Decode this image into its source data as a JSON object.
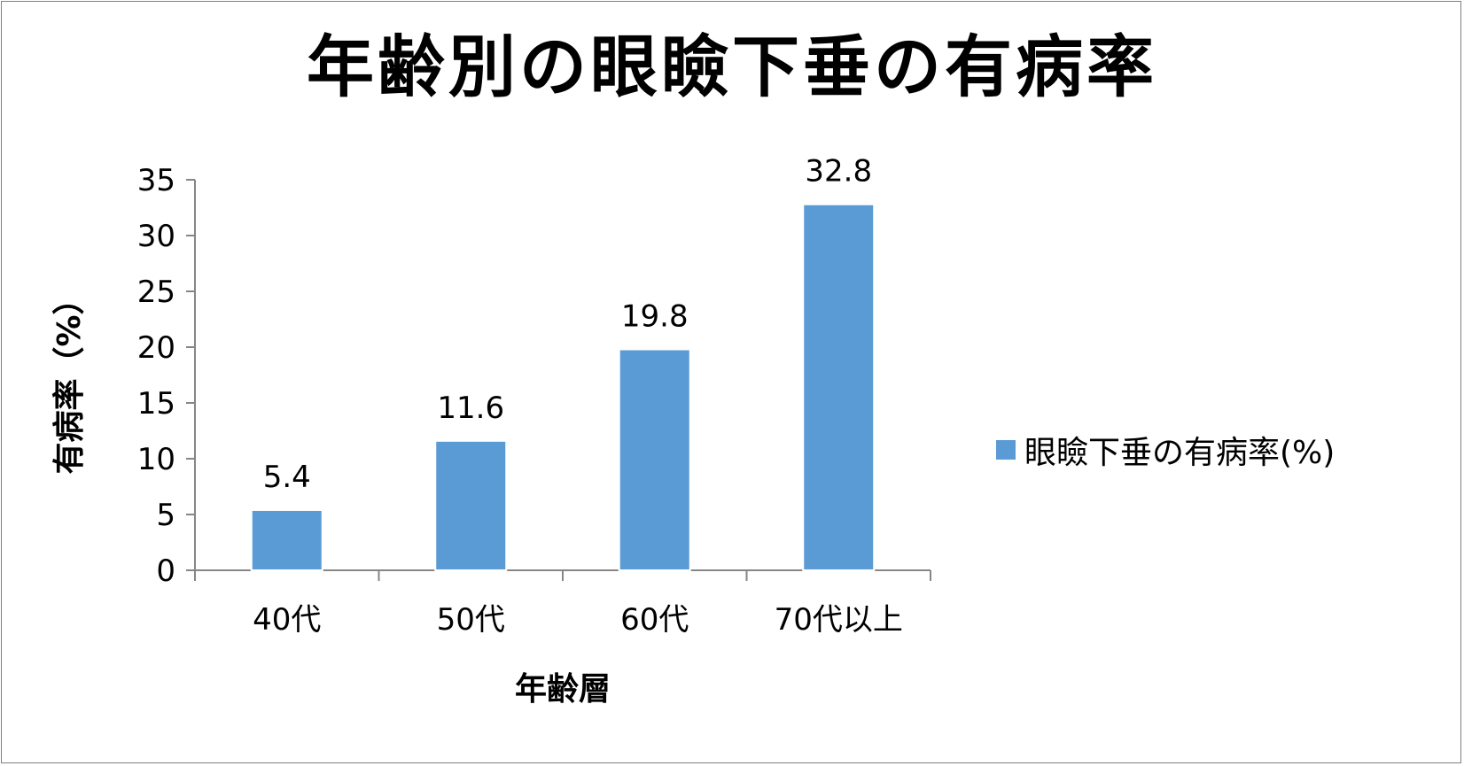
{
  "chart_data": {
    "type": "bar",
    "title": "年齢別の眼瞼下垂の有病率",
    "xlabel": "年齢層",
    "ylabel": "有病率（%）",
    "categories": [
      "40代",
      "50代",
      "60代",
      "70代以上"
    ],
    "series": [
      {
        "name": "眼瞼下垂の有病率(%)",
        "values": [
          5.4,
          11.6,
          19.8,
          32.8
        ],
        "color": "#5B9BD5"
      }
    ],
    "data_labels": [
      "5.4",
      "11.6",
      "19.8",
      "32.8"
    ],
    "ylim": [
      0,
      35
    ],
    "yticks": [
      0,
      5,
      10,
      15,
      20,
      25,
      30,
      35
    ],
    "grid": false,
    "legend_position": "right"
  }
}
